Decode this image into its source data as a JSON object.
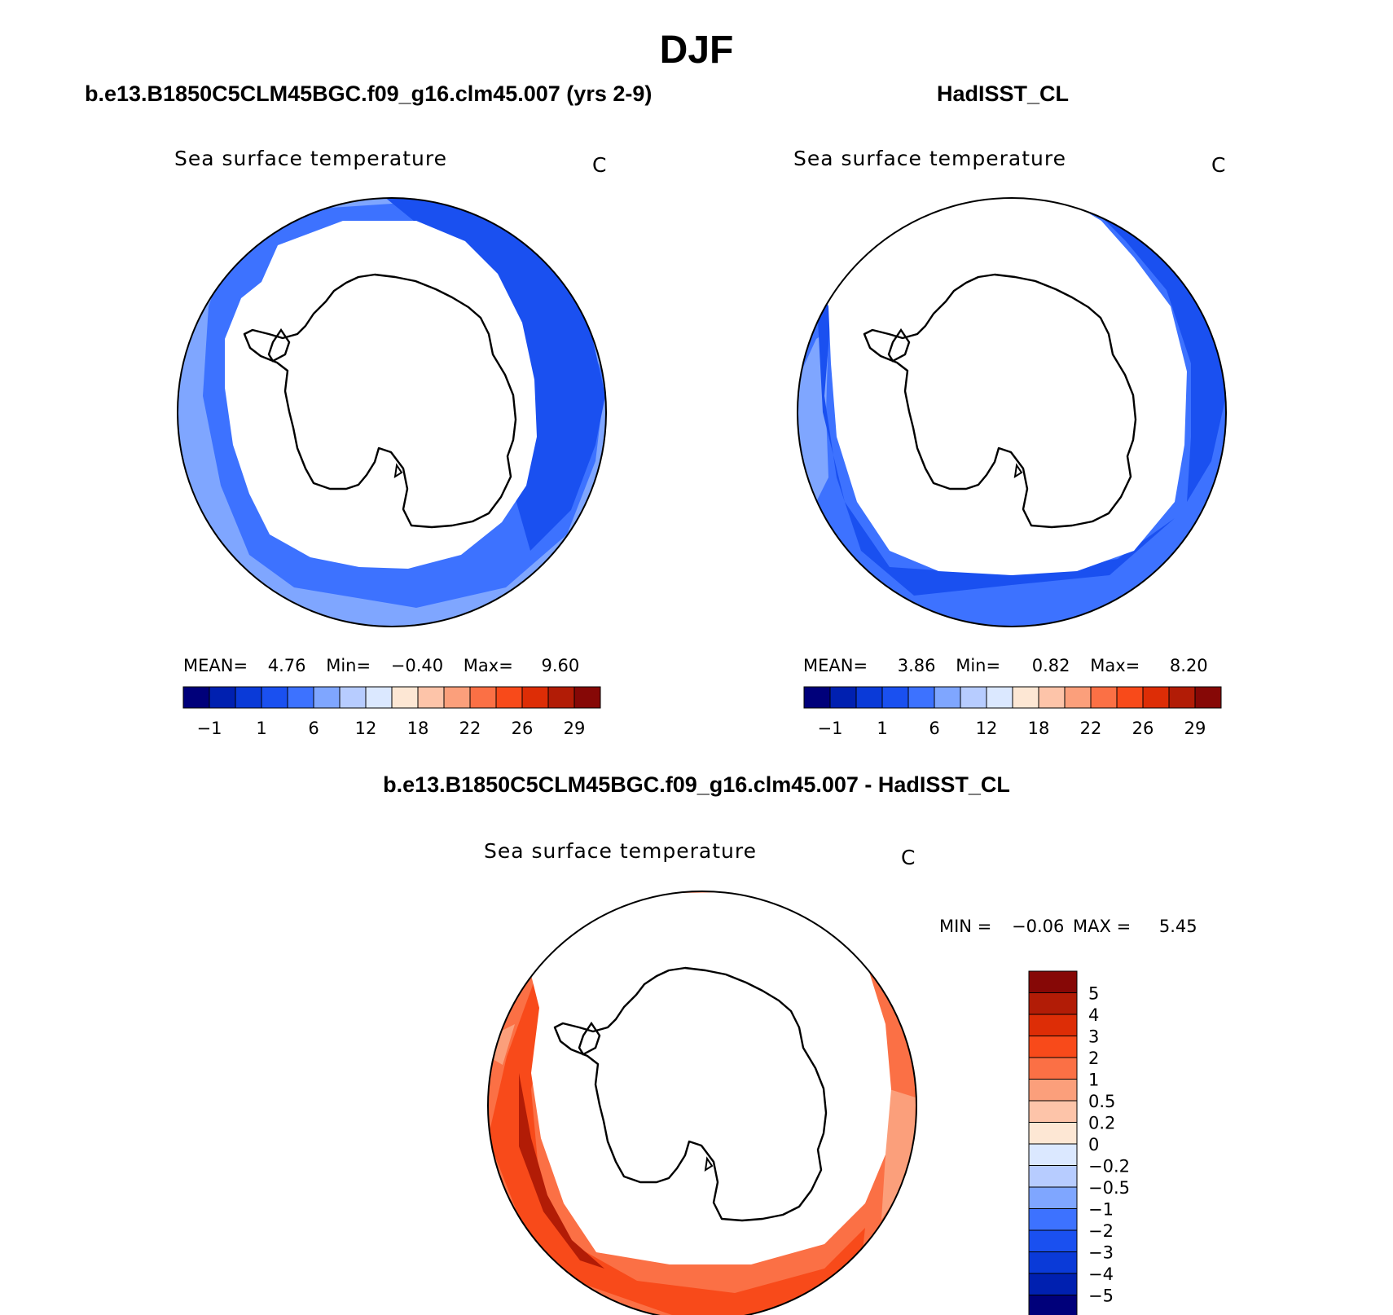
{
  "season": "DJF",
  "panels": {
    "model": {
      "title": "b.e13.B1850C5CLM45BGC.f09_g16.clm45.007 (yrs 2-9)",
      "field": "Sea surface temperature",
      "units": "C",
      "stats": {
        "mean_label": "MEAN=",
        "mean": "4.76",
        "min_label": "Min=",
        "min": "−0.40",
        "max_label": "Max=",
        "max": "9.60"
      }
    },
    "obs": {
      "title": "HadISST_CL",
      "field": "Sea surface temperature",
      "units": "C",
      "stats": {
        "mean_label": "MEAN=",
        "mean": "3.86",
        "min_label": "Min=",
        "min": "0.82",
        "max_label": "Max=",
        "max": "8.20"
      }
    },
    "diff": {
      "title": "b.e13.B1850C5CLM45BGC.f09_g16.clm45.007 - HadISST_CL",
      "field": "Sea surface temperature",
      "units": "C",
      "stats": {
        "min_label": "MIN =",
        "min": "−0.06",
        "max_label": "MAX =",
        "max": "5.45"
      }
    }
  },
  "colorbar_abs": {
    "tick_labels": [
      "−1",
      "1",
      "6",
      "12",
      "18",
      "22",
      "26",
      "29"
    ],
    "colors": [
      "#00007a",
      "#0020b0",
      "#0a3ad8",
      "#1a50f0",
      "#3d72ff",
      "#7fa6ff",
      "#b7ccff",
      "#dbe8ff",
      "#fde7d4",
      "#fdc4a9",
      "#fb9f7b",
      "#fb7045",
      "#f84a1a",
      "#dd2d06",
      "#b21c06",
      "#860806"
    ]
  },
  "colorbar_diff": {
    "tick_labels": [
      "5",
      "4",
      "3",
      "2",
      "1",
      "0.5",
      "0.2",
      "0",
      "−0.2",
      "−0.5",
      "−1",
      "−2",
      "−3",
      "−4",
      "−5"
    ],
    "colors": [
      "#860806",
      "#b21c06",
      "#dd2d06",
      "#f84a1a",
      "#fb7045",
      "#fb9f7b",
      "#fdc4a9",
      "#fde7d4",
      "#dbe8ff",
      "#b7ccff",
      "#7fa6ff",
      "#3d72ff",
      "#1a50f0",
      "#0a3ad8",
      "#0020b0",
      "#00007a"
    ]
  },
  "fill_colors": {
    "model_outer": "#7fa6ff",
    "model_mid": "#3d72ff",
    "model_inner": "#1a50f0",
    "obs_outer": "#7fa6ff",
    "obs_mid": "#3d72ff",
    "obs_inner": "#1a50f0",
    "diff_outer": "#fb7045",
    "diff_mid": "#f84a1a",
    "diff_hot": "#b21c06",
    "diff_light": "#fb9f7b"
  }
}
